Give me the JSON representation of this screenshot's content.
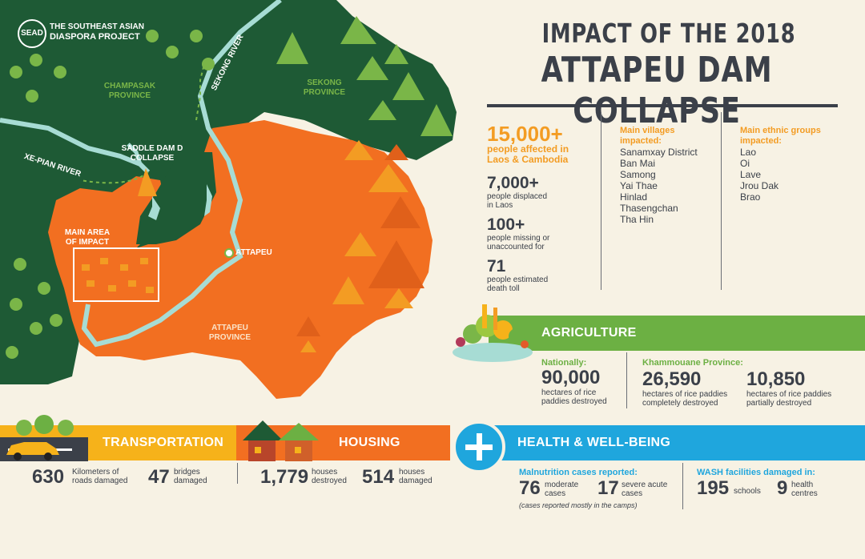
{
  "logo": {
    "mark": "SEAD",
    "line1": "THE SOUTHEAST ASIAN",
    "line2": "DIASPORA PROJECT"
  },
  "title": {
    "line1": "IMPACT OF THE 2018",
    "line2": "ATTAPEU DAM COLLAPSE"
  },
  "map": {
    "champasak": [
      "CHAMPASAK",
      "PROVINCE"
    ],
    "sekong_river": "SEKONG RIVER",
    "sekong": [
      "SEKONG",
      "PROVINCE"
    ],
    "saddle_dam": [
      "SADDLE DAM D",
      "COLLAPSE"
    ],
    "xe_pian": "XE-PIAN RIVER",
    "main_area": [
      "MAIN AREA",
      "OF IMPACT"
    ],
    "attapeu_city": "ATTAPEU",
    "attapeu_province": [
      "ATTAPEU",
      "PROVINCE"
    ]
  },
  "stats": {
    "affected": {
      "value": "15,000+",
      "label1": "people affected in",
      "label2": "Laos & Cambodia"
    },
    "displaced": {
      "value": "7,000+",
      "label1": "people displaced",
      "label2": "in Laos"
    },
    "missing": {
      "value": "100+",
      "label1": "people missing or",
      "label2": "unaccounted for"
    },
    "death": {
      "value": "71",
      "label1": "people estimated",
      "label2": "death toll"
    }
  },
  "villages": {
    "heading1": "Main villages",
    "heading2": "impacted:",
    "items": [
      "Sanamxay District",
      "Ban Mai",
      "Samong",
      "Yai Thae",
      "Hinlad",
      "Thasengchan",
      "Tha Hin"
    ]
  },
  "ethnic": {
    "heading1": "Main ethnic groups",
    "heading2": "impacted:",
    "items": [
      "Lao",
      "Oi",
      "Lave",
      "Jrou Dak",
      "Brao"
    ]
  },
  "agriculture": {
    "label": "AGRICULTURE",
    "nationally": {
      "heading": "Nationally:",
      "value": "90,000",
      "l1": "hectares of rice",
      "l2": "paddies destroyed"
    },
    "province": "Khammouane Province:",
    "complete": {
      "value": "26,590",
      "l1": "hectares of rice paddies",
      "l2": "completely destroyed"
    },
    "partial": {
      "value": "10,850",
      "l1": "hectares of rice paddies",
      "l2": "partially destroyed"
    }
  },
  "transportation": {
    "label": "TRANSPORTATION",
    "roads": {
      "value": "630",
      "l1": "Kilometers of",
      "l2": "roads damaged"
    },
    "bridges": {
      "value": "47",
      "l1": "bridges",
      "l2": "damaged"
    }
  },
  "housing": {
    "label": "HOUSING",
    "destroyed": {
      "value": "1,779",
      "l1": "houses",
      "l2": "destroyed"
    },
    "damaged": {
      "value": "514",
      "l1": "houses",
      "l2": "damaged"
    }
  },
  "health": {
    "label": "HEALTH & WELL-BEING",
    "malnutrition": "Malnutrition cases reported:",
    "moderate": {
      "value": "76",
      "l1": "moderate",
      "l2": "cases"
    },
    "severe": {
      "value": "17",
      "l1": "severe acute",
      "l2": "cases"
    },
    "note": "(cases reported mostly in the camps)",
    "wash": "WASH facilities damaged in:",
    "schools": {
      "value": "195",
      "l1": "schools"
    },
    "centres": {
      "value": "9",
      "l1": "health",
      "l2": "centres"
    }
  },
  "colors": {
    "dark_green": "#1e5a35",
    "orange": "#f26f21",
    "accent": "#f39c23",
    "green_band": "#6cb043",
    "yellow_band": "#f6b21a",
    "blue_band": "#1fa6dd"
  }
}
